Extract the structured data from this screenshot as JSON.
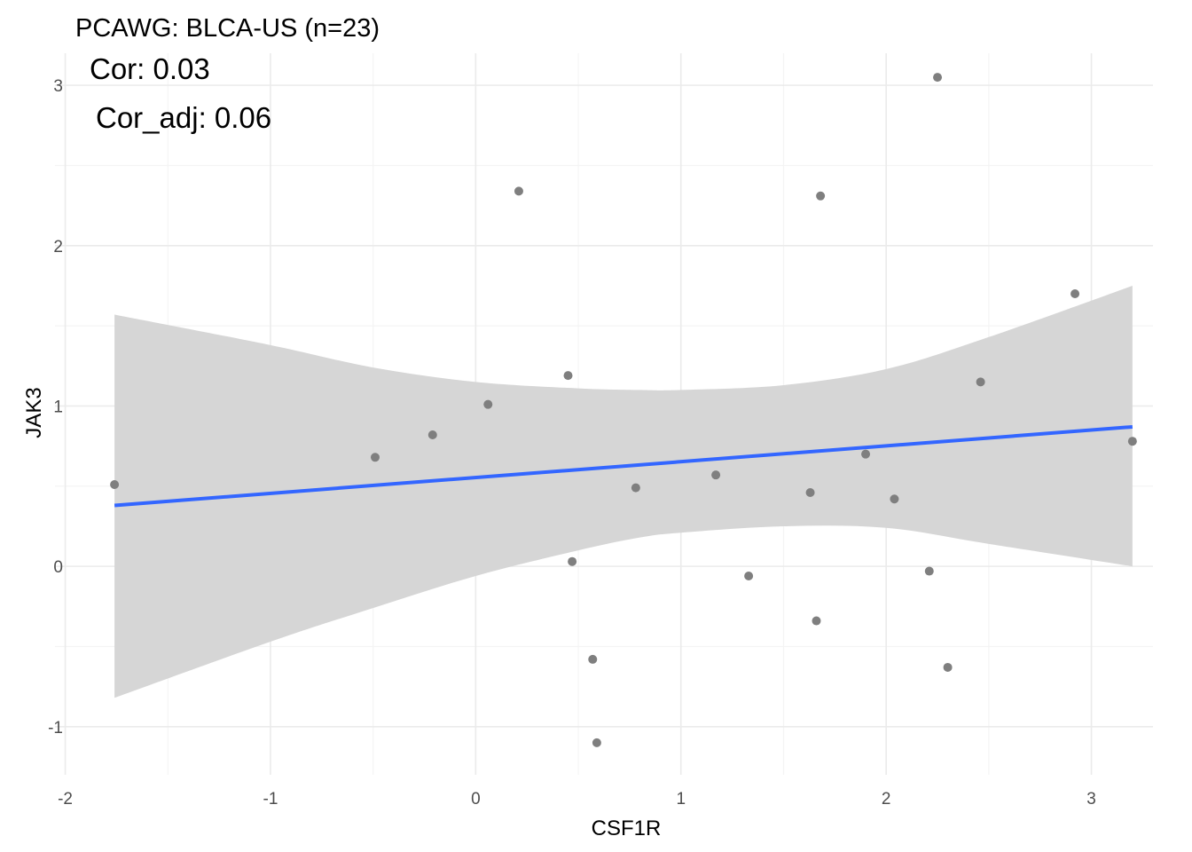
{
  "chart_data": {
    "type": "scatter",
    "title": "PCAWG: BLCA-US (n=23)",
    "annotations": [
      "Cor: 0.03",
      "Cor_adj: 0.06"
    ],
    "xlabel": "CSF1R",
    "ylabel": "JAK3",
    "xlim": [
      -2.05,
      3.3
    ],
    "ylim": [
      -1.3,
      3.2
    ],
    "x_ticks": [
      -2,
      -1,
      0,
      1,
      2,
      3
    ],
    "y_ticks": [
      -1,
      0,
      1,
      2,
      3
    ],
    "grid": true,
    "legend": "none",
    "points": [
      {
        "x": -1.76,
        "y": 0.51
      },
      {
        "x": -0.49,
        "y": 0.68
      },
      {
        "x": -0.21,
        "y": 0.82
      },
      {
        "x": 0.06,
        "y": 1.01
      },
      {
        "x": 0.21,
        "y": 2.34
      },
      {
        "x": 0.45,
        "y": 1.19
      },
      {
        "x": 0.47,
        "y": 0.03
      },
      {
        "x": 0.57,
        "y": -0.58
      },
      {
        "x": 0.59,
        "y": -1.1
      },
      {
        "x": 0.78,
        "y": 0.49
      },
      {
        "x": 1.17,
        "y": 0.57
      },
      {
        "x": 1.33,
        "y": -0.06
      },
      {
        "x": 1.63,
        "y": 0.46
      },
      {
        "x": 1.66,
        "y": -0.34
      },
      {
        "x": 1.68,
        "y": 2.31
      },
      {
        "x": 1.9,
        "y": 0.7
      },
      {
        "x": 2.04,
        "y": 0.42
      },
      {
        "x": 2.21,
        "y": -0.03
      },
      {
        "x": 2.25,
        "y": 3.05
      },
      {
        "x": 2.3,
        "y": -0.63
      },
      {
        "x": 2.46,
        "y": 1.15
      },
      {
        "x": 2.92,
        "y": 1.7
      },
      {
        "x": 3.2,
        "y": 0.78
      }
    ],
    "fit_line": {
      "x": [
        -1.76,
        3.2
      ],
      "y": [
        0.38,
        0.87
      ]
    },
    "confidence_band": {
      "x": [
        -1.76,
        -1.0,
        -0.5,
        0.0,
        0.5,
        0.8,
        1.0,
        1.5,
        2.0,
        2.5,
        3.2
      ],
      "upper": [
        1.57,
        1.38,
        1.24,
        1.15,
        1.11,
        1.1,
        1.1,
        1.13,
        1.23,
        1.43,
        1.75
      ],
      "lower": [
        -0.82,
        -0.47,
        -0.26,
        -0.06,
        0.1,
        0.18,
        0.21,
        0.25,
        0.24,
        0.14,
        0.0
      ]
    },
    "colors": {
      "points": "#7f7f7f",
      "fit_line": "#3366ff",
      "band": "#d6d6d6",
      "grid_major": "#ebebeb",
      "grid_minor": "#f4f4f4"
    }
  }
}
